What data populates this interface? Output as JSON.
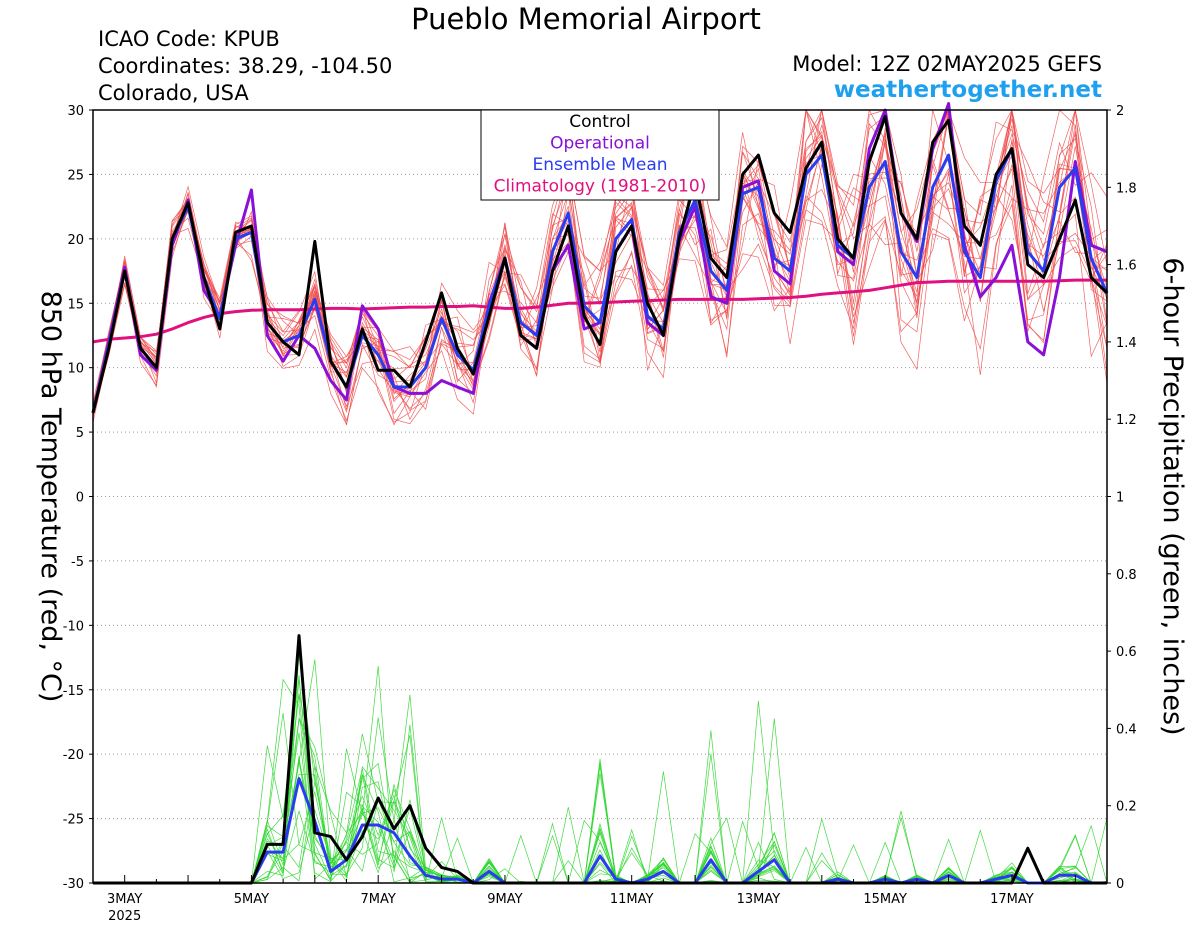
{
  "header": {
    "title": "Pueblo Memorial Airport",
    "icao": "ICAO Code: KPUB",
    "coords": "Coordinates: 38.29, -104.50",
    "place": "Colorado, USA",
    "model": "Model: 12Z 02MAY2025 GEFS",
    "site": "weathertogether.net"
  },
  "colors": {
    "members_temp": "#f04a4a",
    "members_precip": "#2fd62f",
    "control": "#000000",
    "operational": "#8a10d6",
    "mean": "#2a3cf0",
    "climatology": "#e0107e",
    "brand": "#1ea0ef"
  },
  "chart_data": {
    "type": "line",
    "title": "Pueblo Memorial Airport",
    "ylabel": "850 hPa Temperature (red, °C)",
    "ylabel_right": "6-hour Precipitation (green, inches)",
    "ylim": [
      -30,
      30
    ],
    "ylim_right": [
      0,
      2
    ],
    "grid": true,
    "legend_position": "top-center",
    "x_start": "2025-05-02 12Z",
    "x_step_hours": 6,
    "x_ticks": [
      {
        "label": "3MAY",
        "sub": "2025",
        "index": 2
      },
      {
        "label": "5MAY",
        "index": 10
      },
      {
        "label": "7MAY",
        "index": 18
      },
      {
        "label": "9MAY",
        "index": 26
      },
      {
        "label": "11MAY",
        "index": 34
      },
      {
        "label": "13MAY",
        "index": 42
      },
      {
        "label": "15MAY",
        "index": 50
      },
      {
        "label": "17MAY",
        "index": 58
      }
    ],
    "y_ticks": [
      30,
      25,
      20,
      15,
      10,
      5,
      0,
      -5,
      -10,
      -15,
      -20,
      -25,
      -30
    ],
    "y_ticks_right": [
      2,
      1.8,
      1.6,
      1.4,
      1.2,
      1,
      0.8,
      0.6,
      0.4,
      0.2,
      0
    ],
    "legend": [
      {
        "label": "Control",
        "color": "#000000"
      },
      {
        "label": "Operational",
        "color": "#8a10d6"
      },
      {
        "label": "Ensemble Mean",
        "color": "#2a3cf0"
      },
      {
        "label": "Climatology (1981-2010)",
        "color": "#e0107e"
      }
    ],
    "series": [
      {
        "name": "Control",
        "axis": "temperature",
        "values": [
          6.5,
          11.5,
          17.5,
          11.5,
          10.0,
          20.0,
          22.8,
          17.0,
          13.0,
          20.5,
          21.0,
          13.5,
          12.0,
          11.0,
          19.8,
          10.5,
          8.5,
          13.0,
          9.8,
          9.8,
          8.5,
          12.0,
          15.8,
          11.5,
          9.5,
          14.0,
          18.5,
          12.5,
          11.5,
          17.5,
          21.0,
          14.0,
          11.8,
          19.0,
          21.0,
          15.0,
          12.5,
          20.0,
          24.5,
          18.5,
          17.0,
          25.0,
          26.5,
          22.0,
          20.5,
          25.5,
          27.5,
          20.0,
          18.5,
          26.0,
          29.5,
          22.0,
          20.0,
          27.5,
          29.2,
          21.0,
          19.5,
          25.0,
          27.0,
          18.0,
          17.0,
          20.0,
          23.0,
          17.0,
          15.8
        ]
      },
      {
        "name": "Operational",
        "axis": "temperature",
        "values": [
          6.5,
          12.0,
          17.8,
          11.0,
          9.8,
          19.5,
          23.0,
          16.0,
          14.0,
          19.5,
          23.8,
          12.5,
          10.5,
          12.5,
          11.5,
          9.0,
          7.5,
          14.8,
          13.0,
          8.5,
          8.0,
          8.0,
          9.0,
          8.5,
          8.0,
          15.0,
          18.5,
          12.5,
          11.5,
          17.5,
          19.5,
          13.0,
          13.5,
          19.0,
          21.0,
          13.5,
          12.5,
          19.8,
          22.5,
          15.5,
          15.0,
          24.0,
          24.5,
          17.5,
          16.5,
          25.5,
          27.5,
          19.0,
          18.0,
          27.0,
          30.0,
          22.0,
          19.8,
          27.0,
          30.5,
          19.5,
          15.5,
          17.0,
          19.5,
          12.0,
          11.0,
          17.0,
          26.0,
          19.5,
          19.0
        ]
      },
      {
        "name": "Ensemble Mean",
        "axis": "temperature",
        "values": [
          6.5,
          11.8,
          17.5,
          11.5,
          10.0,
          20.0,
          22.5,
          17.0,
          13.8,
          20.0,
          20.5,
          13.5,
          12.0,
          12.5,
          15.3,
          10.5,
          8.5,
          12.5,
          11.0,
          8.5,
          8.5,
          10.0,
          13.8,
          11.0,
          9.8,
          14.8,
          18.5,
          13.5,
          12.5,
          19.0,
          22.0,
          14.8,
          13.5,
          20.0,
          21.5,
          14.0,
          13.0,
          20.5,
          23.0,
          17.5,
          16.0,
          23.5,
          24.0,
          18.5,
          17.5,
          25.0,
          26.5,
          19.5,
          18.5,
          24.0,
          26.0,
          19.0,
          17.0,
          24.0,
          26.5,
          19.0,
          17.0,
          24.5,
          27.0,
          19.0,
          17.5,
          24.0,
          25.5,
          18.5,
          15.8
        ]
      },
      {
        "name": "Climatology (1981-2010)",
        "axis": "temperature",
        "values": [
          12.0,
          12.2,
          12.3,
          12.4,
          12.6,
          13.0,
          13.5,
          13.9,
          14.2,
          14.35,
          14.45,
          14.5,
          14.5,
          14.5,
          14.55,
          14.6,
          14.6,
          14.55,
          14.6,
          14.65,
          14.7,
          14.7,
          14.75,
          14.75,
          14.8,
          14.7,
          14.6,
          14.6,
          14.7,
          14.85,
          15.0,
          15.0,
          15.05,
          15.1,
          15.15,
          15.2,
          15.25,
          15.3,
          15.3,
          15.3,
          15.3,
          15.3,
          15.35,
          15.4,
          15.45,
          15.55,
          15.7,
          15.8,
          15.9,
          16.0,
          16.2,
          16.4,
          16.6,
          16.65,
          16.7,
          16.7,
          16.7,
          16.7,
          16.7,
          16.7,
          16.7,
          16.75,
          16.8,
          16.8,
          16.8
        ]
      },
      {
        "name": "Control",
        "axis": "precipitation",
        "values": [
          0,
          0,
          0,
          0,
          0,
          0,
          0,
          0,
          0,
          0,
          0,
          0.1,
          0.1,
          0.64,
          0.13,
          0.12,
          0.06,
          0.12,
          0.22,
          0.14,
          0.2,
          0.09,
          0.04,
          0.03,
          0,
          0,
          0,
          0,
          0,
          0,
          0,
          0,
          0,
          0,
          0,
          0,
          0,
          0,
          0,
          0,
          0,
          0,
          0,
          0,
          0,
          0,
          0,
          0,
          0,
          0,
          0,
          0,
          0,
          0,
          0,
          0,
          0,
          0,
          0,
          0.09,
          0,
          0,
          0,
          0,
          0
        ]
      },
      {
        "name": "Ensemble Mean",
        "axis": "precipitation",
        "values": [
          0,
          0,
          0,
          0,
          0,
          0,
          0,
          0,
          0,
          0,
          0,
          0.08,
          0.08,
          0.27,
          0.16,
          0.03,
          0.06,
          0.15,
          0.15,
          0.13,
          0.07,
          0.02,
          0.01,
          0.01,
          0,
          0.03,
          0,
          0,
          0,
          0,
          0,
          0,
          0.07,
          0.01,
          0,
          0.01,
          0.03,
          0,
          0,
          0.06,
          0,
          0,
          0.03,
          0.06,
          0,
          0,
          0,
          0.01,
          0,
          0,
          0.01,
          0,
          0.01,
          0,
          0.02,
          0,
          0,
          0.01,
          0.02,
          0,
          0,
          0.02,
          0.02,
          0,
          0
        ]
      }
    ]
  }
}
